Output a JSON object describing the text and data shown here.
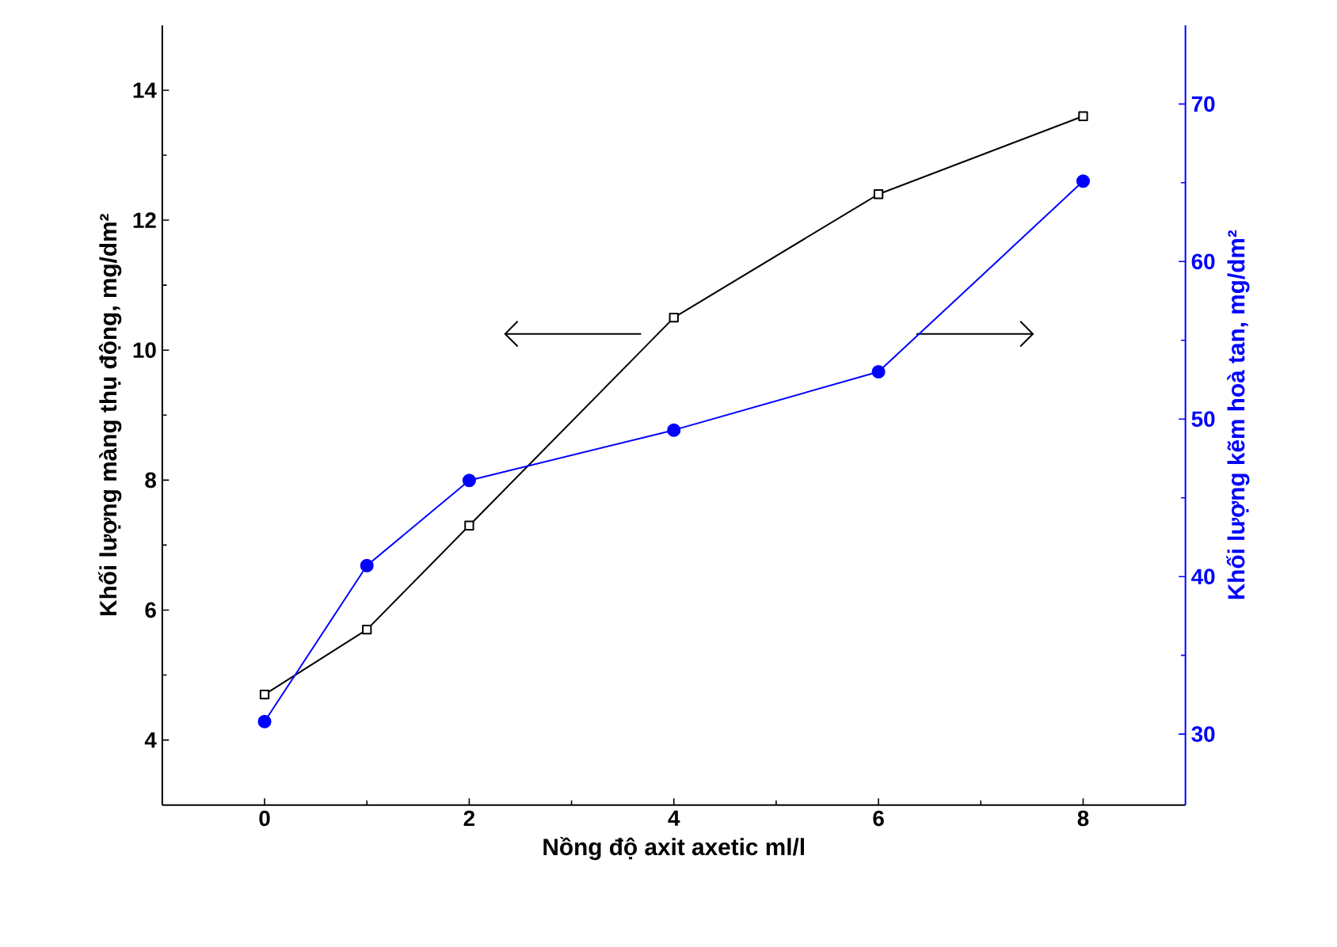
{
  "chart_data": {
    "type": "line",
    "xlabel": "Nồng độ axit axetic ml/l",
    "ylabel": "Khối lượng màng thụ động, mg/dm²",
    "y2label": "Khối lượng kẽm hoà tan, mg/dm²",
    "x": [
      0,
      1,
      2,
      4,
      6,
      8
    ],
    "xlim": [
      -1,
      9
    ],
    "xticks": [
      0,
      2,
      4,
      6,
      8
    ],
    "ylim": [
      3,
      15
    ],
    "yticks": [
      4,
      6,
      8,
      10,
      12,
      14
    ],
    "y2lim": [
      25.5,
      75
    ],
    "y2ticks": [
      30,
      40,
      50,
      60,
      70
    ],
    "line_style": "solid",
    "series": [
      {
        "color": "#000000",
        "marker": "square",
        "axis": "y",
        "values": [
          4.7,
          5.7,
          7.3,
          10.5,
          12.4,
          13.6
        ]
      },
      {
        "color": "#0000ff",
        "marker": "circle",
        "axis": "y2",
        "values": [
          30.8,
          40.7,
          46.1,
          49.3,
          53.0,
          65.1
        ]
      }
    ]
  }
}
